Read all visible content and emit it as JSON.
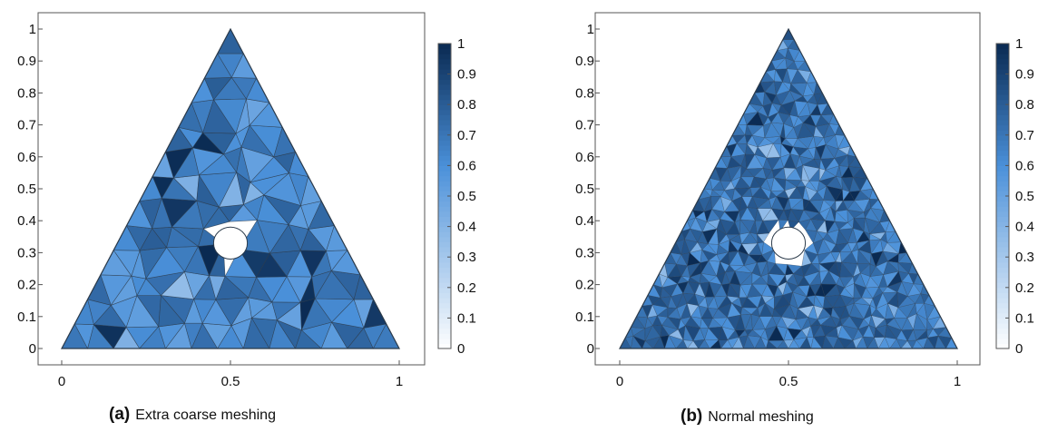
{
  "chart_data": [
    {
      "type": "heatmap",
      "panel": "a",
      "caption_label": "(a)",
      "caption_text": "Extra coarse meshing",
      "xlim": [
        0,
        1
      ],
      "ylim": [
        0,
        1
      ],
      "x_ticks": [
        "0",
        "0.5",
        "1"
      ],
      "y_ticks": [
        "0",
        "0.1",
        "0.2",
        "0.3",
        "0.4",
        "0.5",
        "0.6",
        "0.7",
        "0.8",
        "0.9",
        "1"
      ],
      "colorbar_ticks": [
        "0",
        "0.1",
        "0.2",
        "0.3",
        "0.4",
        "0.5",
        "0.6",
        "0.7",
        "0.8",
        "0.9",
        "1"
      ],
      "colorbar_range": [
        0,
        1
      ],
      "domain": {
        "triangle": [
          [
            0,
            0
          ],
          [
            1,
            0
          ],
          [
            0.5,
            1
          ]
        ],
        "hole_center": [
          0.5,
          0.33
        ],
        "hole_radius": 0.05
      },
      "mesh_density": "extra coarse",
      "typical_value": 0.65,
      "grid": false
    },
    {
      "type": "heatmap",
      "panel": "b",
      "caption_label": "(b)",
      "caption_text": "Normal meshing",
      "xlim": [
        0,
        1
      ],
      "ylim": [
        0,
        1
      ],
      "x_ticks": [
        "0",
        "0.5",
        "1"
      ],
      "y_ticks": [
        "0",
        "0.1",
        "0.2",
        "0.3",
        "0.4",
        "0.5",
        "0.6",
        "0.7",
        "0.8",
        "0.9",
        "1"
      ],
      "colorbar_ticks": [
        "0",
        "0.1",
        "0.2",
        "0.3",
        "0.4",
        "0.5",
        "0.6",
        "0.7",
        "0.8",
        "0.9",
        "1"
      ],
      "colorbar_range": [
        0,
        1
      ],
      "domain": {
        "triangle": [
          [
            0,
            0
          ],
          [
            1,
            0
          ],
          [
            0.5,
            1
          ]
        ],
        "hole_center": [
          0.5,
          0.33
        ],
        "hole_radius": 0.05
      },
      "mesh_density": "normal",
      "typical_value": 0.72,
      "grid": false
    }
  ],
  "colors": {
    "colormap_low": "#ffffff",
    "colormap_mid": "#4a90d9",
    "colormap_high": "#0a2a52",
    "edge": "#2b3a4a",
    "axis": "#555555"
  }
}
